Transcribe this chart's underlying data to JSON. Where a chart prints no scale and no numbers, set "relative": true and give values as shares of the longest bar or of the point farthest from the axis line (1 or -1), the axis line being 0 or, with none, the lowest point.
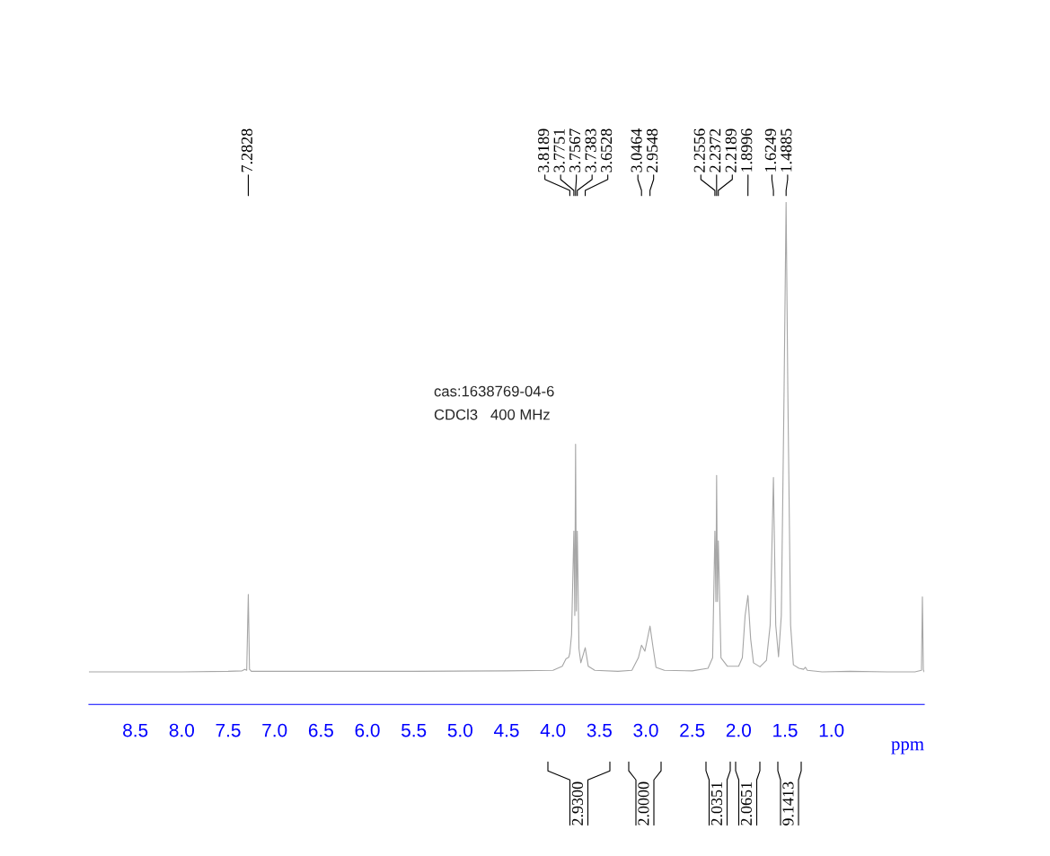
{
  "chart_data": {
    "type": "line",
    "relative": true,
    "xlabel": "ppm",
    "xlim": [
      9.0,
      0.0
    ],
    "xticks": [
      {
        "value": 8.5,
        "label": "8.5"
      },
      {
        "value": 8.0,
        "label": "8.0"
      },
      {
        "value": 7.5,
        "label": "7.5"
      },
      {
        "value": 7.0,
        "label": "7.0"
      },
      {
        "value": 6.5,
        "label": "6.5"
      },
      {
        "value": 6.0,
        "label": "6.0"
      },
      {
        "value": 5.5,
        "label": "5.5"
      },
      {
        "value": 5.0,
        "label": "5.0"
      },
      {
        "value": 4.5,
        "label": "4.5"
      },
      {
        "value": 4.0,
        "label": "4.0"
      },
      {
        "value": 3.5,
        "label": "3.5"
      },
      {
        "value": 3.0,
        "label": "3.0"
      },
      {
        "value": 2.5,
        "label": "2.5"
      },
      {
        "value": 2.0,
        "label": "2.0"
      },
      {
        "value": 1.5,
        "label": "1.5"
      },
      {
        "value": 1.0,
        "label": "1.0"
      }
    ],
    "grid": false,
    "legend": false,
    "marker": "none",
    "line_style": "solid",
    "series": [
      {
        "color": "#a6a6a6",
        "x": [
          9.0,
          8.0,
          7.5,
          7.35,
          7.32,
          7.3,
          7.2828,
          7.27,
          7.25,
          6.5,
          5.5,
          4.5,
          4.0,
          3.9,
          3.86,
          3.83,
          3.8189,
          3.8,
          3.7751,
          3.765,
          3.7567,
          3.748,
          3.7383,
          3.72,
          3.7,
          3.6528,
          3.62,
          3.55,
          3.3,
          3.15,
          3.08,
          3.0464,
          3.01,
          2.9548,
          2.92,
          2.89,
          2.8,
          2.5,
          2.33,
          2.28,
          2.2556,
          2.245,
          2.2372,
          2.228,
          2.2189,
          2.19,
          2.12,
          2.0,
          1.96,
          1.93,
          1.8996,
          1.87,
          1.84,
          1.77,
          1.7,
          1.66,
          1.6249,
          1.6,
          1.57,
          1.54,
          1.51,
          1.4885,
          1.47,
          1.44,
          1.41,
          1.35,
          1.3,
          1.28,
          1.26,
          1.1,
          0.8,
          0.4,
          0.1,
          0.03,
          0.02,
          0.01,
          0.0
        ],
        "values": [
          0.065,
          0.065,
          0.066,
          0.067,
          0.07,
          0.068,
          0.219,
          0.07,
          0.066,
          0.066,
          0.066,
          0.067,
          0.068,
          0.076,
          0.091,
          0.094,
          0.102,
          0.139,
          0.345,
          0.177,
          0.518,
          0.186,
          0.345,
          0.111,
          0.083,
          0.113,
          0.076,
          0.068,
          0.066,
          0.068,
          0.093,
          0.118,
          0.106,
          0.156,
          0.111,
          0.074,
          0.068,
          0.067,
          0.072,
          0.093,
          0.345,
          0.205,
          0.456,
          0.205,
          0.326,
          0.093,
          0.076,
          0.076,
          0.093,
          0.177,
          0.217,
          0.13,
          0.083,
          0.075,
          0.088,
          0.158,
          0.452,
          0.158,
          0.095,
          0.177,
          0.626,
          1.0,
          0.626,
          0.158,
          0.079,
          0.072,
          0.07,
          0.074,
          0.068,
          0.065,
          0.066,
          0.065,
          0.065,
          0.068,
          0.214,
          0.069,
          0.065
        ]
      }
    ],
    "annotations": [
      {
        "text": "7.2828",
        "x": 7.2828
      },
      {
        "text": "3.8189",
        "x": 3.8189
      },
      {
        "text": "3.7751",
        "x": 3.7751
      },
      {
        "text": "3.7567",
        "x": 3.7567
      },
      {
        "text": "3.7383",
        "x": 3.7383
      },
      {
        "text": "3.6528",
        "x": 3.6528
      },
      {
        "text": "3.0464",
        "x": 3.0464
      },
      {
        "text": "2.9548",
        "x": 2.9548
      },
      {
        "text": "2.2556",
        "x": 2.2556
      },
      {
        "text": "2.2372",
        "x": 2.2372
      },
      {
        "text": "2.2189",
        "x": 2.2189
      },
      {
        "text": "1.8996",
        "x": 1.8996
      },
      {
        "text": "1.6249",
        "x": 1.6249
      },
      {
        "text": "1.4885",
        "x": 1.4885
      },
      "2.9300",
      "2.0000",
      "2.0351",
      "2.0651",
      "9.1413",
      "cas:1638769-04-6",
      "CDCl3   400 MHz"
    ]
  }
}
